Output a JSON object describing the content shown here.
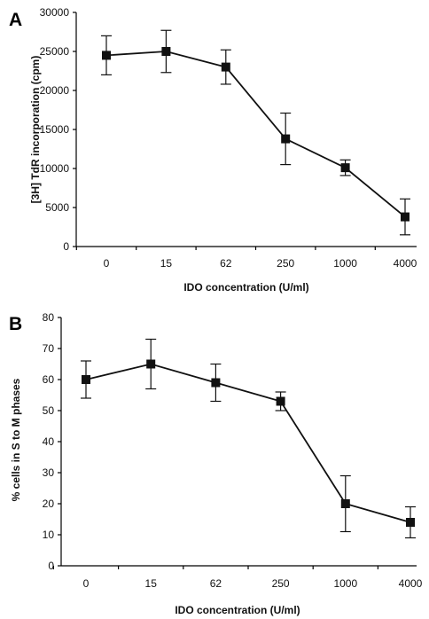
{
  "chart_data": [
    {
      "panel_label": "A",
      "type": "line",
      "categories": [
        "0",
        "15",
        "62",
        "250",
        "1000",
        "4000"
      ],
      "series": [
        {
          "values": [
            24500,
            25000,
            23000,
            13800,
            10100,
            3800
          ],
          "error": [
            2500,
            2700,
            2200,
            3300,
            1000,
            2300
          ]
        }
      ],
      "xlabel": "IDO concentration (U/ml)",
      "ylabel": "[3H] TdR incorporation (cpm)",
      "ylim": [
        0,
        30000
      ],
      "yticks": [
        "0",
        "5000",
        "10000",
        "15000",
        "20000",
        "25000",
        "30000"
      ],
      "grid": false,
      "color": "#111111"
    },
    {
      "panel_label": "B",
      "type": "line",
      "categories": [
        "0",
        "15",
        "62",
        "250",
        "1000",
        "4000"
      ],
      "series": [
        {
          "values": [
            60,
            65,
            59,
            53,
            20,
            14
          ],
          "error": [
            6,
            8,
            6,
            3,
            9,
            5
          ]
        }
      ],
      "xlabel": "IDO concentration (U/ml)",
      "ylabel": "% cells in S to M phases",
      "ylim": [
        0,
        80
      ],
      "yticks": [
        "0",
        "10",
        "20",
        "30",
        "40",
        "50",
        "60",
        "70",
        "80"
      ],
      "grid": false,
      "color": "#111111"
    }
  ]
}
